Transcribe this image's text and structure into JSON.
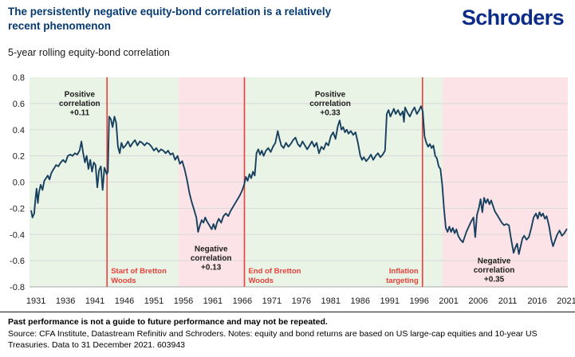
{
  "header": {
    "title": "The persistently negative equity-bond correlation is a relatively recent phenomenon",
    "logo": "Schroders"
  },
  "subtitle": "5-year rolling equity-bond correlation",
  "colors": {
    "brand_navy": "#0d2c87",
    "title_blue": "#063a72",
    "line": "#17405e",
    "event_red": "#e8403a",
    "positive_era_green": "#e9f3e6",
    "negative_era_pink": "#fce3e8",
    "gridline": "#d9d9d9"
  },
  "chart_data": {
    "type": "line",
    "title": "5-year rolling equity-bond correlation",
    "x_range": [
      1929.9,
      2021.2
    ],
    "ylim": [
      -0.8,
      0.8
    ],
    "yticks": [
      0.8,
      0.6,
      0.4,
      0.2,
      0.0,
      -0.2,
      -0.4,
      -0.6,
      -0.8
    ],
    "xticks": [
      1931,
      1936,
      1941,
      1946,
      1951,
      1956,
      1961,
      1966,
      1971,
      1976,
      1981,
      1986,
      1991,
      1996,
      2001,
      2006,
      2011,
      2016,
      2021
    ],
    "grid": "horizontal",
    "legend": "none",
    "line_color": "#17405e",
    "regions": [
      {
        "from": 1929.9,
        "to": 1955.2,
        "fill": "#e9f3e6",
        "label": "positive-era-1"
      },
      {
        "from": 1955.2,
        "to": 1966.35,
        "fill": "#fce3e8",
        "label": "negative-era-1"
      },
      {
        "from": 1966.35,
        "to": 1999.95,
        "fill": "#e9f3e6",
        "label": "positive-era-2"
      },
      {
        "from": 1999.95,
        "to": 2021.2,
        "fill": "#fce3e8",
        "label": "negative-era-2"
      }
    ],
    "event_lines": [
      {
        "x": 1943.05,
        "label": "Start of Bretton Woods",
        "lines": [
          "Start of Bretton",
          "Woods"
        ],
        "align": "left",
        "color": "#e8403a"
      },
      {
        "x": 1966.35,
        "label": "End of Bretton Woods",
        "lines": [
          "End of Bretton",
          "Woods"
        ],
        "align": "left",
        "color": "#e8403a"
      },
      {
        "x": 1996.55,
        "label": "Inflation targeting",
        "lines": [
          "Inflation",
          "targeting"
        ],
        "align": "right",
        "color": "#e8403a"
      }
    ],
    "annotations": [
      {
        "lines": [
          "Positive",
          "correlation",
          "+0.11"
        ],
        "x": 1938.4,
        "y": 0.65,
        "color": "#1e1e1e"
      },
      {
        "lines": [
          "Negative",
          "correlation",
          "+0.13"
        ],
        "x": 1960.7,
        "y": -0.53,
        "color": "#1e1e1e"
      },
      {
        "lines": [
          "Positive",
          "correlation",
          "+0.33"
        ],
        "x": 1980.9,
        "y": 0.65,
        "color": "#1e1e1e"
      },
      {
        "lines": [
          "Negative",
          "correlation",
          "+0.35"
        ],
        "x": 2008.7,
        "y": -0.62,
        "color": "#1e1e1e"
      }
    ],
    "series": [
      {
        "name": "5-year rolling equity-bond correlation",
        "points": [
          [
            1930.2,
            -0.22
          ],
          [
            1930.4,
            -0.27
          ],
          [
            1930.7,
            -0.24
          ],
          [
            1930.9,
            -0.13
          ],
          [
            1931.1,
            -0.05
          ],
          [
            1931.3,
            -0.16
          ],
          [
            1931.5,
            -0.08
          ],
          [
            1931.8,
            -0.02
          ],
          [
            1932.1,
            -0.06
          ],
          [
            1932.4,
            0.01
          ],
          [
            1932.7,
            0.03
          ],
          [
            1933.0,
            0.05
          ],
          [
            1933.3,
            0.02
          ],
          [
            1933.6,
            0.07
          ],
          [
            1934.0,
            0.1
          ],
          [
            1934.4,
            0.13
          ],
          [
            1934.8,
            0.12
          ],
          [
            1935.2,
            0.15
          ],
          [
            1935.6,
            0.17
          ],
          [
            1936.0,
            0.15
          ],
          [
            1936.4,
            0.2
          ],
          [
            1936.8,
            0.21
          ],
          [
            1937.2,
            0.2
          ],
          [
            1937.6,
            0.22
          ],
          [
            1938.0,
            0.21
          ],
          [
            1938.4,
            0.24
          ],
          [
            1938.7,
            0.31
          ],
          [
            1939.0,
            0.22
          ],
          [
            1939.3,
            0.15
          ],
          [
            1939.6,
            0.2
          ],
          [
            1939.9,
            0.1
          ],
          [
            1940.2,
            0.17
          ],
          [
            1940.5,
            0.08
          ],
          [
            1940.8,
            0.15
          ],
          [
            1941.1,
            0.13
          ],
          [
            1941.4,
            -0.04
          ],
          [
            1941.7,
            0.09
          ],
          [
            1942.0,
            0.12
          ],
          [
            1942.3,
            -0.06
          ],
          [
            1942.6,
            0.11
          ],
          [
            1943.0,
            0.06
          ],
          [
            1943.2,
            0.08
          ],
          [
            1943.4,
            0.5
          ],
          [
            1943.7,
            0.48
          ],
          [
            1944.0,
            0.42
          ],
          [
            1944.3,
            0.5
          ],
          [
            1944.6,
            0.45
          ],
          [
            1944.9,
            0.27
          ],
          [
            1945.2,
            0.22
          ],
          [
            1945.5,
            0.3
          ],
          [
            1945.8,
            0.26
          ],
          [
            1946.2,
            0.28
          ],
          [
            1946.6,
            0.31
          ],
          [
            1947.0,
            0.27
          ],
          [
            1947.4,
            0.3
          ],
          [
            1947.8,
            0.32
          ],
          [
            1948.2,
            0.28
          ],
          [
            1948.6,
            0.31
          ],
          [
            1949.0,
            0.3
          ],
          [
            1949.4,
            0.28
          ],
          [
            1949.8,
            0.3
          ],
          [
            1950.2,
            0.29
          ],
          [
            1950.6,
            0.27
          ],
          [
            1951.0,
            0.24
          ],
          [
            1951.4,
            0.26
          ],
          [
            1951.8,
            0.23
          ],
          [
            1952.2,
            0.25
          ],
          [
            1952.6,
            0.24
          ],
          [
            1953.0,
            0.22
          ],
          [
            1953.4,
            0.24
          ],
          [
            1953.8,
            0.21
          ],
          [
            1954.2,
            0.22
          ],
          [
            1954.6,
            0.17
          ],
          [
            1955.0,
            0.2
          ],
          [
            1955.4,
            0.14
          ],
          [
            1955.8,
            0.16
          ],
          [
            1956.2,
            0.1
          ],
          [
            1956.6,
            0.02
          ],
          [
            1957.0,
            -0.08
          ],
          [
            1957.4,
            -0.15
          ],
          [
            1957.8,
            -0.21
          ],
          [
            1958.2,
            -0.27
          ],
          [
            1958.5,
            -0.38
          ],
          [
            1958.8,
            -0.33
          ],
          [
            1959.1,
            -0.29
          ],
          [
            1959.4,
            -0.31
          ],
          [
            1959.7,
            -0.27
          ],
          [
            1960.0,
            -0.3
          ],
          [
            1960.4,
            -0.33
          ],
          [
            1960.8,
            -0.36
          ],
          [
            1961.1,
            -0.32
          ],
          [
            1961.4,
            -0.36
          ],
          [
            1961.7,
            -0.31
          ],
          [
            1962.0,
            -0.28
          ],
          [
            1962.4,
            -0.31
          ],
          [
            1962.8,
            -0.26
          ],
          [
            1963.2,
            -0.24
          ],
          [
            1963.6,
            -0.26
          ],
          [
            1964.0,
            -0.22
          ],
          [
            1964.4,
            -0.19
          ],
          [
            1964.8,
            -0.16
          ],
          [
            1965.2,
            -0.13
          ],
          [
            1965.6,
            -0.1
          ],
          [
            1966.0,
            -0.06
          ],
          [
            1966.3,
            -0.02
          ],
          [
            1966.6,
            0.04
          ],
          [
            1966.9,
            0.01
          ],
          [
            1967.2,
            0.06
          ],
          [
            1967.5,
            0.03
          ],
          [
            1967.8,
            0.08
          ],
          [
            1968.1,
            0.05
          ],
          [
            1968.4,
            0.22
          ],
          [
            1968.7,
            0.25
          ],
          [
            1969.0,
            0.21
          ],
          [
            1969.3,
            0.24
          ],
          [
            1969.6,
            0.2
          ],
          [
            1970.0,
            0.24
          ],
          [
            1970.4,
            0.26
          ],
          [
            1970.8,
            0.23
          ],
          [
            1971.2,
            0.27
          ],
          [
            1971.6,
            0.3
          ],
          [
            1972.0,
            0.39
          ],
          [
            1972.3,
            0.33
          ],
          [
            1972.6,
            0.28
          ],
          [
            1973.0,
            0.26
          ],
          [
            1973.4,
            0.3
          ],
          [
            1973.8,
            0.27
          ],
          [
            1974.2,
            0.29
          ],
          [
            1974.6,
            0.32
          ],
          [
            1975.0,
            0.34
          ],
          [
            1975.4,
            0.29
          ],
          [
            1975.8,
            0.27
          ],
          [
            1976.2,
            0.31
          ],
          [
            1976.6,
            0.28
          ],
          [
            1977.0,
            0.25
          ],
          [
            1977.4,
            0.28
          ],
          [
            1977.8,
            0.31
          ],
          [
            1978.2,
            0.27
          ],
          [
            1978.6,
            0.3
          ],
          [
            1979.0,
            0.22
          ],
          [
            1979.4,
            0.27
          ],
          [
            1979.8,
            0.25
          ],
          [
            1980.2,
            0.3
          ],
          [
            1980.6,
            0.28
          ],
          [
            1981.0,
            0.35
          ],
          [
            1981.4,
            0.38
          ],
          [
            1981.8,
            0.33
          ],
          [
            1982.2,
            0.43
          ],
          [
            1982.5,
            0.47
          ],
          [
            1982.8,
            0.4
          ],
          [
            1983.1,
            0.42
          ],
          [
            1983.4,
            0.38
          ],
          [
            1983.7,
            0.4
          ],
          [
            1984.0,
            0.37
          ],
          [
            1984.4,
            0.39
          ],
          [
            1984.8,
            0.36
          ],
          [
            1985.2,
            0.38
          ],
          [
            1985.6,
            0.3
          ],
          [
            1986.0,
            0.2
          ],
          [
            1986.3,
            0.17
          ],
          [
            1986.6,
            0.19
          ],
          [
            1987.0,
            0.16
          ],
          [
            1987.4,
            0.18
          ],
          [
            1987.8,
            0.21
          ],
          [
            1988.2,
            0.17
          ],
          [
            1988.6,
            0.2
          ],
          [
            1989.0,
            0.22
          ],
          [
            1989.4,
            0.19
          ],
          [
            1989.8,
            0.21
          ],
          [
            1990.2,
            0.24
          ],
          [
            1990.5,
            0.52
          ],
          [
            1990.8,
            0.55
          ],
          [
            1991.1,
            0.5
          ],
          [
            1991.4,
            0.53
          ],
          [
            1991.7,
            0.56
          ],
          [
            1992.0,
            0.52
          ],
          [
            1992.4,
            0.55
          ],
          [
            1992.8,
            0.51
          ],
          [
            1993.2,
            0.54
          ],
          [
            1993.4,
            0.46
          ],
          [
            1993.6,
            0.57
          ],
          [
            1994.0,
            0.53
          ],
          [
            1994.4,
            0.5
          ],
          [
            1994.8,
            0.54
          ],
          [
            1995.2,
            0.57
          ],
          [
            1995.6,
            0.52
          ],
          [
            1996.0,
            0.55
          ],
          [
            1996.3,
            0.58
          ],
          [
            1996.6,
            0.54
          ],
          [
            1996.9,
            0.35
          ],
          [
            1997.2,
            0.3
          ],
          [
            1997.5,
            0.27
          ],
          [
            1997.8,
            0.29
          ],
          [
            1998.1,
            0.26
          ],
          [
            1998.4,
            0.28
          ],
          [
            1998.7,
            0.2
          ],
          [
            1999.0,
            0.18
          ],
          [
            1999.3,
            0.12
          ],
          [
            1999.6,
            0.1
          ],
          [
            1999.9,
            -0.02
          ],
          [
            2000.2,
            -0.2
          ],
          [
            2000.5,
            -0.35
          ],
          [
            2000.8,
            -0.38
          ],
          [
            2001.1,
            -0.34
          ],
          [
            2001.4,
            -0.38
          ],
          [
            2001.7,
            -0.35
          ],
          [
            2002.0,
            -0.39
          ],
          [
            2002.3,
            -0.36
          ],
          [
            2002.6,
            -0.41
          ],
          [
            2003.0,
            -0.44
          ],
          [
            2003.4,
            -0.46
          ],
          [
            2003.7,
            -0.42
          ],
          [
            2004.0,
            -0.38
          ],
          [
            2004.4,
            -0.34
          ],
          [
            2004.8,
            -0.3
          ],
          [
            2005.2,
            -0.27
          ],
          [
            2005.5,
            -0.42
          ],
          [
            2005.8,
            -0.25
          ],
          [
            2006.1,
            -0.2
          ],
          [
            2006.4,
            -0.13
          ],
          [
            2006.7,
            -0.23
          ],
          [
            2007.0,
            -0.12
          ],
          [
            2007.3,
            -0.16
          ],
          [
            2007.6,
            -0.13
          ],
          [
            2007.9,
            -0.17
          ],
          [
            2008.2,
            -0.14
          ],
          [
            2008.5,
            -0.18
          ],
          [
            2008.8,
            -0.22
          ],
          [
            2009.2,
            -0.25
          ],
          [
            2009.6,
            -0.28
          ],
          [
            2010.0,
            -0.31
          ],
          [
            2010.4,
            -0.33
          ],
          [
            2010.8,
            -0.32
          ],
          [
            2011.2,
            -0.33
          ],
          [
            2011.6,
            -0.44
          ],
          [
            2012.0,
            -0.54
          ],
          [
            2012.3,
            -0.5
          ],
          [
            2012.6,
            -0.47
          ],
          [
            2012.9,
            -0.55
          ],
          [
            2013.2,
            -0.49
          ],
          [
            2013.5,
            -0.43
          ],
          [
            2013.8,
            -0.41
          ],
          [
            2014.2,
            -0.44
          ],
          [
            2014.6,
            -0.42
          ],
          [
            2015.0,
            -0.35
          ],
          [
            2015.4,
            -0.27
          ],
          [
            2015.8,
            -0.24
          ],
          [
            2016.1,
            -0.28
          ],
          [
            2016.4,
            -0.23
          ],
          [
            2016.7,
            -0.26
          ],
          [
            2017.0,
            -0.24
          ],
          [
            2017.3,
            -0.28
          ],
          [
            2017.6,
            -0.26
          ],
          [
            2018.0,
            -0.33
          ],
          [
            2018.4,
            -0.44
          ],
          [
            2018.7,
            -0.49
          ],
          [
            2019.0,
            -0.45
          ],
          [
            2019.4,
            -0.4
          ],
          [
            2019.8,
            -0.37
          ],
          [
            2020.2,
            -0.41
          ],
          [
            2020.6,
            -0.39
          ],
          [
            2021.0,
            -0.36
          ]
        ]
      }
    ]
  },
  "footer": {
    "past_performance": "Past performance is not a guide to future performance and may not be repeated.",
    "source": "Source: CFA Institute, Datastream Refinitiv and Schroders. Notes: equity and bond returns are based on US large-cap equities and 10-year US Treasuries. Data to 31 December 2021. 603943"
  }
}
